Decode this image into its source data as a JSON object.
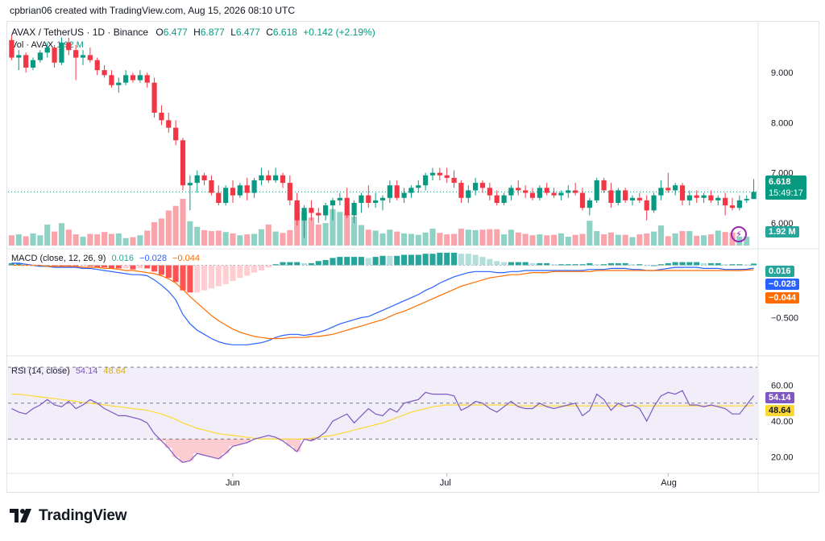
{
  "header": {
    "text": "cpbrian06 created with TradingView.com, Aug 15, 2026 08:10 UTC"
  },
  "symbol": {
    "name": "AVAX / TetherUS · 1D · Binance",
    "o_label": "O",
    "o": "6.477",
    "h_label": "H",
    "h": "6.877",
    "l_label": "L",
    "l": "6.477",
    "c_label": "C",
    "c": "6.618",
    "change": "+0.142 (+2.19%)"
  },
  "volume_legend": {
    "label": "Vol · AVAX",
    "value": "1.92 M"
  },
  "macd_legend": {
    "label": "MACD (close, 12, 26, 9)",
    "hist": "0.016",
    "macd": "−0.028",
    "signal": "−0.044"
  },
  "rsi_legend": {
    "label": "RSI (14, close)",
    "rsi": "54.14",
    "ma": "48.64"
  },
  "price_axis": {
    "ticks": [
      "9.000",
      "8.000",
      "7.000",
      "6.000"
    ],
    "last_price": "6.618",
    "countdown": "15:49:17",
    "volume_tag": "1.92 M"
  },
  "macd_axis": {
    "ticks": [
      "−0.500"
    ],
    "hist_tag": "0.016",
    "macd_tag": "−0.028",
    "signal_tag": "−0.044"
  },
  "rsi_axis": {
    "ticks": [
      "60.00",
      "40.00",
      "20.00"
    ],
    "rsi_tag": "54.14",
    "ma_tag": "48.64"
  },
  "time_axis": {
    "labels": [
      "Jun",
      "Jul",
      "Aug"
    ]
  },
  "logo": {
    "text": "TradingView"
  },
  "colors": {
    "up": "#089981",
    "down": "#f23645",
    "macd": "#2962ff",
    "signal": "#ff6d00",
    "rsi": "#7e57c2",
    "rsi_ma": "#fdd835"
  },
  "chart_data": {
    "type": "candlestick",
    "x_start": "2026-05-01",
    "x_end": "2026-08-15",
    "ohlc": [
      [
        9.65,
        9.75,
        9.25,
        9.3
      ],
      [
        9.3,
        9.45,
        9.05,
        9.35
      ],
      [
        9.35,
        9.4,
        9.0,
        9.1
      ],
      [
        9.1,
        9.3,
        9.05,
        9.25
      ],
      [
        9.25,
        9.45,
        9.2,
        9.4
      ],
      [
        9.4,
        9.6,
        9.3,
        9.5
      ],
      [
        9.5,
        9.55,
        9.1,
        9.2
      ],
      [
        9.2,
        9.7,
        9.15,
        9.6
      ],
      [
        9.6,
        9.7,
        9.35,
        9.45
      ],
      [
        9.45,
        9.55,
        8.85,
        9.3
      ],
      [
        9.3,
        9.45,
        9.15,
        9.35
      ],
      [
        9.35,
        9.5,
        9.2,
        9.25
      ],
      [
        9.25,
        9.3,
        8.95,
        9.05
      ],
      [
        9.05,
        9.15,
        8.9,
        8.95
      ],
      [
        8.95,
        9.05,
        8.7,
        8.75
      ],
      [
        8.75,
        8.9,
        8.6,
        8.8
      ],
      [
        8.8,
        9.05,
        8.75,
        8.95
      ],
      [
        8.95,
        9.0,
        8.8,
        8.85
      ],
      [
        8.85,
        9.05,
        8.8,
        8.95
      ],
      [
        8.95,
        9.0,
        8.7,
        8.8
      ],
      [
        8.8,
        8.9,
        8.1,
        8.2
      ],
      [
        8.2,
        8.35,
        7.95,
        8.05
      ],
      [
        8.05,
        8.2,
        7.8,
        7.9
      ],
      [
        7.9,
        8.05,
        7.55,
        7.65
      ],
      [
        7.65,
        7.7,
        6.65,
        6.75
      ],
      [
        6.75,
        6.95,
        6.25,
        6.8
      ],
      [
        6.8,
        7.05,
        6.6,
        6.95
      ],
      [
        6.95,
        7.0,
        6.75,
        6.85
      ],
      [
        6.85,
        6.95,
        6.55,
        6.6
      ],
      [
        6.6,
        6.75,
        6.35,
        6.4
      ],
      [
        6.4,
        6.75,
        6.35,
        6.7
      ],
      [
        6.7,
        6.85,
        6.4,
        6.55
      ],
      [
        6.55,
        6.8,
        6.5,
        6.75
      ],
      [
        6.75,
        6.9,
        6.45,
        6.6
      ],
      [
        6.6,
        6.9,
        6.5,
        6.85
      ],
      [
        6.85,
        7.1,
        6.75,
        6.95
      ],
      [
        6.95,
        7.05,
        6.8,
        6.85
      ],
      [
        6.85,
        7.1,
        6.8,
        6.95
      ],
      [
        6.95,
        7.0,
        6.7,
        6.8
      ],
      [
        6.8,
        6.95,
        6.35,
        6.45
      ],
      [
        6.45,
        6.6,
        5.95,
        6.05
      ],
      [
        6.05,
        6.35,
        5.7,
        6.3
      ],
      [
        6.3,
        6.45,
        6.05,
        6.2
      ],
      [
        6.2,
        6.3,
        6.0,
        6.15
      ],
      [
        6.15,
        6.4,
        6.05,
        6.35
      ],
      [
        6.35,
        6.5,
        6.05,
        6.45
      ],
      [
        6.45,
        6.6,
        6.35,
        6.5
      ],
      [
        6.5,
        6.7,
        6.1,
        6.15
      ],
      [
        6.15,
        6.45,
        6.0,
        6.4
      ],
      [
        6.4,
        6.6,
        6.2,
        6.55
      ],
      [
        6.55,
        6.75,
        6.3,
        6.4
      ],
      [
        6.4,
        6.6,
        6.3,
        6.45
      ],
      [
        6.45,
        6.55,
        6.25,
        6.5
      ],
      [
        6.5,
        6.85,
        6.4,
        6.75
      ],
      [
        6.75,
        6.85,
        6.45,
        6.5
      ],
      [
        6.5,
        6.7,
        6.4,
        6.6
      ],
      [
        6.6,
        6.75,
        6.5,
        6.7
      ],
      [
        6.7,
        6.85,
        6.6,
        6.75
      ],
      [
        6.75,
        7.0,
        6.65,
        6.95
      ],
      [
        6.95,
        7.1,
        6.85,
        7.0
      ],
      [
        7.0,
        7.1,
        6.85,
        6.95
      ],
      [
        6.95,
        7.1,
        6.8,
        6.9
      ],
      [
        6.9,
        7.05,
        6.7,
        6.8
      ],
      [
        6.8,
        6.85,
        6.4,
        6.5
      ],
      [
        6.5,
        6.75,
        6.4,
        6.65
      ],
      [
        6.65,
        6.9,
        6.55,
        6.8
      ],
      [
        6.8,
        6.85,
        6.6,
        6.7
      ],
      [
        6.7,
        6.8,
        6.45,
        6.55
      ],
      [
        6.55,
        6.65,
        6.35,
        6.4
      ],
      [
        6.4,
        6.6,
        6.35,
        6.55
      ],
      [
        6.55,
        6.75,
        6.45,
        6.7
      ],
      [
        6.7,
        6.85,
        6.55,
        6.65
      ],
      [
        6.65,
        6.75,
        6.5,
        6.6
      ],
      [
        6.6,
        6.7,
        6.45,
        6.5
      ],
      [
        6.5,
        6.75,
        6.45,
        6.7
      ],
      [
        6.7,
        6.8,
        6.55,
        6.6
      ],
      [
        6.6,
        6.7,
        6.5,
        6.55
      ],
      [
        6.55,
        6.65,
        6.45,
        6.6
      ],
      [
        6.6,
        6.75,
        6.5,
        6.65
      ],
      [
        6.65,
        6.8,
        6.55,
        6.6
      ],
      [
        6.6,
        6.7,
        6.25,
        6.3
      ],
      [
        6.3,
        6.5,
        6.15,
        6.45
      ],
      [
        6.45,
        6.9,
        6.4,
        6.85
      ],
      [
        6.85,
        6.9,
        6.6,
        6.65
      ],
      [
        6.65,
        6.8,
        6.3,
        6.4
      ],
      [
        6.4,
        6.7,
        6.35,
        6.65
      ],
      [
        6.65,
        6.7,
        6.4,
        6.45
      ],
      [
        6.45,
        6.55,
        6.35,
        6.5
      ],
      [
        6.5,
        6.6,
        6.4,
        6.45
      ],
      [
        6.45,
        6.55,
        6.05,
        6.25
      ],
      [
        6.25,
        6.6,
        6.2,
        6.55
      ],
      [
        6.55,
        6.85,
        6.45,
        6.7
      ],
      [
        6.7,
        7.0,
        6.6,
        6.65
      ],
      [
        6.65,
        6.8,
        6.55,
        6.75
      ],
      [
        6.75,
        6.8,
        6.35,
        6.45
      ],
      [
        6.45,
        6.65,
        6.35,
        6.55
      ],
      [
        6.55,
        6.65,
        6.4,
        6.5
      ],
      [
        6.5,
        6.6,
        6.4,
        6.55
      ],
      [
        6.55,
        6.65,
        6.4,
        6.45
      ],
      [
        6.45,
        6.55,
        6.35,
        6.5
      ],
      [
        6.5,
        6.6,
        6.15,
        6.35
      ],
      [
        6.35,
        6.5,
        6.25,
        6.3
      ],
      [
        6.3,
        6.55,
        6.25,
        6.45
      ],
      [
        6.45,
        6.55,
        6.4,
        6.48
      ],
      [
        6.477,
        6.877,
        6.477,
        6.618
      ]
    ],
    "volume_millions": [
      2.2,
      2.4,
      2.0,
      2.6,
      2.2,
      4.5,
      3.0,
      4.8,
      3.4,
      2.4,
      1.9,
      2.5,
      2.4,
      2.9,
      2.5,
      2.6,
      1.6,
      1.8,
      2.2,
      3.2,
      5.0,
      5.8,
      7.5,
      8.5,
      10.0,
      5.2,
      4.0,
      3.3,
      3.1,
      3.2,
      2.9,
      2.6,
      2.2,
      2.4,
      2.5,
      3.5,
      4.5,
      3.0,
      2.7,
      3.3,
      9.0,
      7.2,
      6.0,
      4.5,
      4.8,
      7.8,
      7.2,
      6.8,
      6.2,
      4.4,
      3.4,
      3.2,
      2.6,
      3.4,
      3.0,
      2.6,
      2.5,
      2.3,
      2.8,
      3.6,
      2.7,
      2.4,
      2.5,
      3.6,
      3.4,
      3.3,
      3.4,
      3.5,
      3.5,
      2.4,
      3.4,
      2.8,
      2.5,
      2.2,
      2.4,
      2.2,
      2.3,
      2.6,
      1.9,
      2.3,
      2.5,
      5.3,
      3.1,
      2.4,
      2.8,
      2.3,
      2.3,
      1.8,
      2.4,
      2.6,
      3.0,
      4.3,
      2.0,
      2.6,
      3.1,
      3.1,
      2.1,
      2.2,
      2.4,
      3.2,
      2.9,
      2.8,
      1.9,
      1.92
    ],
    "macd": [
      0.02,
      0.02,
      0.01,
      0.0,
      -0.01,
      -0.01,
      -0.02,
      -0.02,
      -0.02,
      -0.02,
      -0.03,
      -0.03,
      -0.04,
      -0.05,
      -0.06,
      -0.07,
      -0.08,
      -0.09,
      -0.09,
      -0.1,
      -0.14,
      -0.19,
      -0.25,
      -0.33,
      -0.47,
      -0.56,
      -0.62,
      -0.66,
      -0.7,
      -0.73,
      -0.75,
      -0.76,
      -0.76,
      -0.76,
      -0.75,
      -0.74,
      -0.72,
      -0.69,
      -0.67,
      -0.66,
      -0.66,
      -0.67,
      -0.66,
      -0.64,
      -0.62,
      -0.59,
      -0.56,
      -0.54,
      -0.52,
      -0.5,
      -0.49,
      -0.46,
      -0.43,
      -0.4,
      -0.37,
      -0.34,
      -0.31,
      -0.28,
      -0.24,
      -0.21,
      -0.17,
      -0.14,
      -0.11,
      -0.09,
      -0.07,
      -0.06,
      -0.06,
      -0.06,
      -0.07,
      -0.07,
      -0.06,
      -0.06,
      -0.05,
      -0.05,
      -0.05,
      -0.05,
      -0.05,
      -0.05,
      -0.05,
      -0.05,
      -0.05,
      -0.04,
      -0.04,
      -0.04,
      -0.03,
      -0.03,
      -0.03,
      -0.04,
      -0.04,
      -0.05,
      -0.05,
      -0.04,
      -0.03,
      -0.02,
      -0.02,
      -0.02,
      -0.02,
      -0.03,
      -0.03,
      -0.03,
      -0.04,
      -0.04,
      -0.04,
      -0.038,
      -0.028
    ],
    "signal": [
      0.0,
      0.0,
      0.0,
      0.0,
      0.0,
      -0.01,
      -0.01,
      -0.01,
      -0.01,
      -0.01,
      -0.02,
      -0.02,
      -0.02,
      -0.03,
      -0.03,
      -0.04,
      -0.05,
      -0.05,
      -0.06,
      -0.07,
      -0.08,
      -0.1,
      -0.13,
      -0.17,
      -0.23,
      -0.3,
      -0.36,
      -0.42,
      -0.48,
      -0.53,
      -0.57,
      -0.61,
      -0.64,
      -0.66,
      -0.68,
      -0.69,
      -0.7,
      -0.7,
      -0.7,
      -0.69,
      -0.69,
      -0.69,
      -0.68,
      -0.68,
      -0.67,
      -0.66,
      -0.64,
      -0.62,
      -0.6,
      -0.58,
      -0.56,
      -0.54,
      -0.52,
      -0.49,
      -0.46,
      -0.44,
      -0.41,
      -0.38,
      -0.35,
      -0.32,
      -0.29,
      -0.26,
      -0.23,
      -0.2,
      -0.18,
      -0.16,
      -0.14,
      -0.12,
      -0.11,
      -0.1,
      -0.09,
      -0.09,
      -0.08,
      -0.07,
      -0.07,
      -0.07,
      -0.06,
      -0.06,
      -0.06,
      -0.06,
      -0.06,
      -0.06,
      -0.05,
      -0.05,
      -0.05,
      -0.05,
      -0.05,
      -0.05,
      -0.05,
      -0.05,
      -0.05,
      -0.05,
      -0.05,
      -0.05,
      -0.05,
      -0.05,
      -0.05,
      -0.05,
      -0.05,
      -0.05,
      -0.05,
      -0.05,
      -0.05,
      -0.046,
      -0.044
    ],
    "rsi": [
      47,
      45,
      44,
      47,
      49,
      52,
      49,
      48,
      51,
      47,
      49,
      52,
      50,
      47,
      45,
      43,
      43,
      42,
      41,
      39,
      33,
      29,
      25,
      20,
      17,
      18,
      22,
      21,
      20,
      19,
      22,
      26,
      27,
      28,
      30,
      31,
      32,
      31,
      29,
      26,
      23,
      30,
      29,
      31,
      34,
      40,
      42,
      44,
      39,
      43,
      47,
      44,
      43,
      47,
      45,
      50,
      51,
      52,
      56,
      55,
      55,
      55,
      54,
      46,
      48,
      51,
      50,
      47,
      45,
      48,
      51,
      48,
      47,
      47,
      50,
      48,
      47,
      48,
      49,
      50,
      43,
      46,
      55,
      52,
      46,
      50,
      48,
      49,
      47,
      40,
      48,
      54,
      56,
      55,
      57,
      49,
      49,
      48,
      49,
      48,
      47,
      44,
      44,
      49,
      54.14
    ],
    "rsi_ma": [
      55,
      55,
      54.5,
      54,
      53.5,
      53,
      52.5,
      52,
      51.5,
      51,
      50.5,
      50,
      49.5,
      49,
      48.5,
      48,
      47.5,
      47,
      46.5,
      46,
      45,
      44,
      42.5,
      41,
      39,
      37.5,
      36,
      35,
      34,
      33,
      32.5,
      32,
      31.5,
      31,
      30.5,
      30,
      30,
      30,
      30,
      30,
      30,
      30,
      30.5,
      31,
      31.5,
      32,
      33,
      34,
      35,
      36,
      37,
      38,
      39,
      40.5,
      42,
      43.5,
      45,
      46,
      47,
      48,
      48.5,
      49,
      49,
      49,
      49,
      49,
      49,
      49,
      49,
      49,
      49,
      48.5,
      48.5,
      48.5,
      48.5,
      48.5,
      48.5,
      48.5,
      48.5,
      48.5,
      48.5,
      48.5,
      48.5,
      48.5,
      48.5,
      48.5,
      48.5,
      48.5,
      48.5,
      48.5,
      48.5,
      48.5,
      48.5,
      48.5,
      48.5,
      48.5,
      48.5,
      48.5,
      48.5,
      48.5,
      48.5,
      48.5,
      48.5,
      48.5,
      48.64
    ],
    "price_range": [
      5.5,
      10.0
    ],
    "macd_range": [
      -0.85,
      0.15
    ],
    "rsi_range": [
      10,
      75
    ],
    "rsi_bands": [
      30,
      50,
      70
    ],
    "x_labels": [
      "Jun",
      "Jul",
      "Aug"
    ]
  }
}
